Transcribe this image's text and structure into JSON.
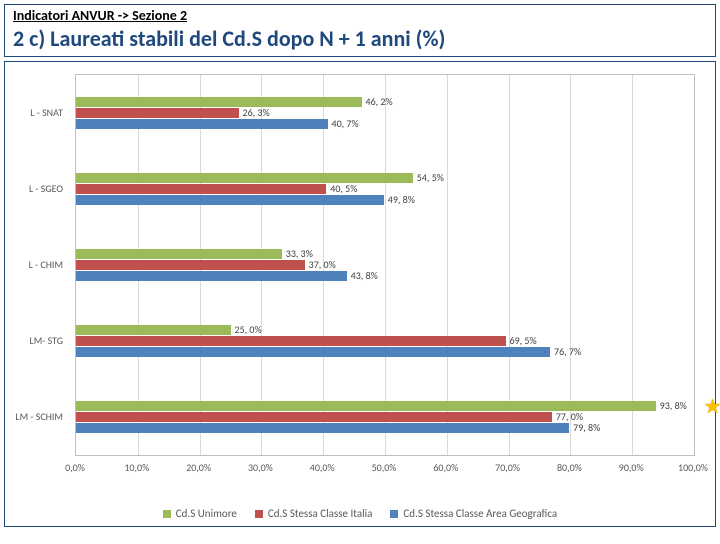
{
  "header": {
    "crumb": "Indicatori ANVUR -> Sezione 2",
    "title": "2 c) Laureati stabili del Cd.S dopo N + 1 anni (%)"
  },
  "chart": {
    "type": "bar-horizontal-grouped",
    "xmin": 0,
    "xmax": 100,
    "xtick_step": 10,
    "xtick_format_suffix": ",0%",
    "series": [
      {
        "key": "uni",
        "label": "Cd.S Unimore",
        "color": "#9bbb59"
      },
      {
        "key": "ita",
        "label": "Cd.S Stessa Classe Italia",
        "color": "#c0504d"
      },
      {
        "key": "geo",
        "label": "Cd.S Stessa Classe Area Geografica",
        "color": "#4f81bd"
      }
    ],
    "categories": [
      {
        "label": "L - SNAT",
        "values": {
          "uni": 46.2,
          "ita": 26.3,
          "geo": 40.7
        },
        "display": {
          "uni": "46, 2%",
          "ita": "26, 3%",
          "geo": "40, 7%"
        }
      },
      {
        "label": "L - SGEO",
        "values": {
          "uni": 54.5,
          "ita": 40.5,
          "geo": 49.8
        },
        "display": {
          "uni": "54, 5%",
          "ita": "40, 5%",
          "geo": "49, 8%"
        }
      },
      {
        "label": "L - CHIM",
        "values": {
          "uni": 33.3,
          "ita": 37.0,
          "geo": 43.8
        },
        "display": {
          "uni": "33, 3%",
          "ita": "37, 0%",
          "geo": "43, 8%"
        }
      },
      {
        "label": "LM- STG",
        "values": {
          "uni": 25.0,
          "ita": 69.5,
          "geo": 76.7
        },
        "display": {
          "uni": "25, 0%",
          "ita": "69, 5%",
          "geo": "76, 7%"
        }
      },
      {
        "label": "LM - SCHIM",
        "values": {
          "uni": 93.8,
          "ita": 77.0,
          "geo": 79.8
        },
        "display": {
          "uni": "93, 8%",
          "ita": "77, 0%",
          "geo": "79, 8%"
        },
        "star": true
      }
    ],
    "bar_colors": {
      "uni": "#9bbb59",
      "ita": "#c0504d",
      "geo": "#4f81bd"
    },
    "grid_color": "#d9d9d9"
  }
}
